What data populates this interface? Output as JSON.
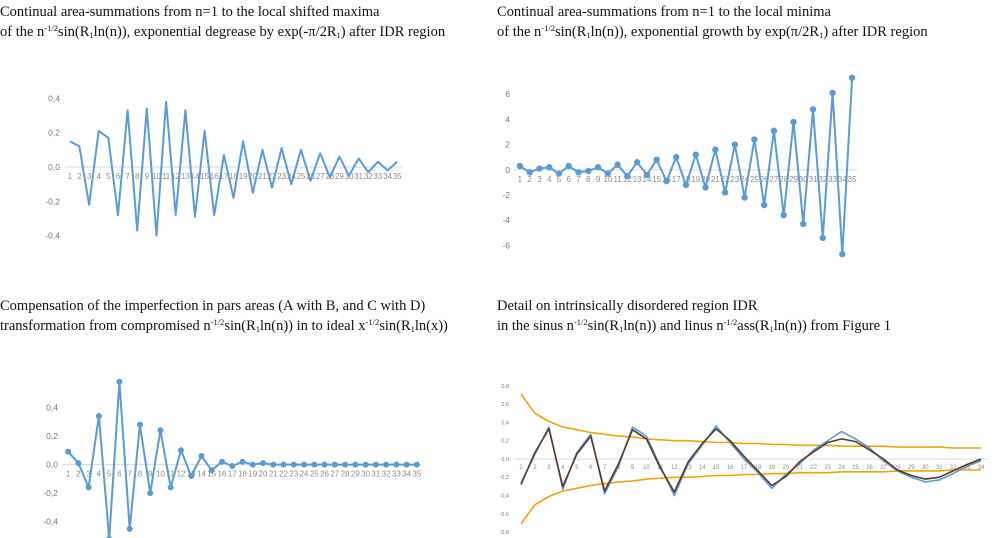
{
  "titles": {
    "maxima": {
      "line1": "Continual area-summations from n=1 to the local shifted maxima",
      "line2": [
        {
          "t": "of the n"
        },
        {
          "sup": "-1/2"
        },
        {
          "t": "sin(R"
        },
        {
          "sub": "1"
        },
        {
          "t": "ln(n)), exponential degrease by exp(-π/2R"
        },
        {
          "sub": "1"
        },
        {
          "t": ") after IDR region"
        }
      ]
    },
    "minima": {
      "line1": "Continual area-summations from n=1 to the local minima",
      "line2": [
        {
          "t": "of the n"
        },
        {
          "sup": "-1/2"
        },
        {
          "t": "sin(R"
        },
        {
          "sub": "1"
        },
        {
          "t": "ln(n)), exponential growth by exp(π/2R"
        },
        {
          "sub": "1"
        },
        {
          "t": ") after IDR region"
        }
      ]
    },
    "compensation": {
      "line1": "Compensation of the imperfection in pars areas (A with B, and C with D)",
      "line2": [
        {
          "t": "transformation from compromised n"
        },
        {
          "sup": "-1/2"
        },
        {
          "t": "sin(R"
        },
        {
          "sub": "1"
        },
        {
          "t": "ln(n)) in to ideal x"
        },
        {
          "sup": "-1/2"
        },
        {
          "t": "sin(R"
        },
        {
          "sub": "1"
        },
        {
          "t": "ln(x))"
        }
      ]
    },
    "idr": {
      "line1": "Detail on intrinsically disordered region IDR",
      "line2": [
        {
          "t": "in the sinus n"
        },
        {
          "sup": "-1/2"
        },
        {
          "t": "sin(R"
        },
        {
          "sub": "1"
        },
        {
          "t": "ln(n)) and linus n"
        },
        {
          "sup": "-1/2"
        },
        {
          "t": "ass(R"
        },
        {
          "sub": "1"
        },
        {
          "t": "ln(n)) from Figure 1"
        }
      ]
    }
  },
  "chart_data": [
    {
      "id": "maxima",
      "type": "line",
      "categories": [
        1,
        2,
        3,
        4,
        5,
        6,
        7,
        8,
        9,
        10,
        11,
        12,
        13,
        14,
        15,
        16,
        17,
        18,
        19,
        20,
        21,
        22,
        23,
        24,
        25,
        26,
        27,
        28,
        29,
        30,
        31,
        32,
        33,
        34,
        35
      ],
      "series": [
        {
          "values": [
            0.15,
            0.12,
            -0.22,
            0.21,
            0.17,
            -0.28,
            0.33,
            -0.37,
            0.34,
            -0.4,
            0.38,
            -0.28,
            0.33,
            -0.29,
            0.21,
            -0.28,
            0.07,
            -0.18,
            0.15,
            -0.15,
            0.1,
            -0.12,
            0.11,
            -0.1,
            0.1,
            -0.08,
            0.08,
            -0.06,
            0.06,
            -0.05,
            0.05,
            -0.03,
            0.03,
            -0.02,
            0.03
          ],
          "color": "#5b9bd5",
          "markers": false
        }
      ],
      "yticks": [
        "0,4",
        "0,2",
        "0,0",
        "-0,2",
        "-0,4"
      ],
      "ytick_values": [
        0.4,
        0.2,
        0,
        -0.2,
        -0.4
      ],
      "ylim": [
        -0.46,
        0.46
      ],
      "grid": false
    },
    {
      "id": "minima",
      "type": "line",
      "categories": [
        1,
        2,
        3,
        4,
        5,
        6,
        7,
        8,
        9,
        10,
        11,
        12,
        13,
        14,
        15,
        16,
        17,
        18,
        19,
        20,
        21,
        22,
        23,
        24,
        25,
        26,
        27,
        28,
        29,
        30,
        31,
        32,
        33,
        34,
        35
      ],
      "series": [
        {
          "values": [
            0.3,
            -0.2,
            0.1,
            0.2,
            -0.3,
            0.3,
            -0.2,
            -0.1,
            0.2,
            -0.3,
            0.4,
            -0.5,
            0.6,
            -0.4,
            0.8,
            -0.9,
            1.0,
            -1.2,
            1.2,
            -1.4,
            1.6,
            -1.8,
            2.0,
            -2.2,
            2.4,
            -2.8,
            3.1,
            -3.6,
            3.8,
            -4.3,
            4.8,
            -5.4,
            6.1,
            -6.7,
            7.3
          ],
          "color": "#5b9bd5",
          "markers": true
        }
      ],
      "yticks": [
        "6",
        "4",
        "2",
        "0",
        "-2",
        "-4",
        "-6"
      ],
      "ytick_values": [
        6,
        4,
        2,
        0,
        -2,
        -4,
        -6
      ],
      "ylim": [
        -7,
        7.6
      ],
      "grid": false
    },
    {
      "id": "compensation",
      "type": "line",
      "categories": [
        1,
        2,
        3,
        4,
        5,
        6,
        7,
        8,
        9,
        10,
        11,
        12,
        13,
        14,
        15,
        16,
        17,
        18,
        19,
        20,
        21,
        22,
        23,
        24,
        25,
        26,
        27,
        28,
        29,
        30,
        31,
        32,
        33,
        34,
        35
      ],
      "series": [
        {
          "values": [
            0.09,
            0.01,
            -0.16,
            0.34,
            -0.52,
            0.58,
            -0.45,
            0.28,
            -0.2,
            0.24,
            -0.16,
            0.1,
            -0.08,
            0.06,
            -0.04,
            0.02,
            -0.01,
            0.02,
            0.0,
            0.01,
            0.0,
            0.0,
            0.0,
            0.0,
            0.0,
            0.0,
            0.0,
            0.0,
            0.0,
            0.0,
            0.0,
            0.0,
            0.0,
            0.0,
            0.0
          ],
          "color": "#5b9bd5",
          "markers": true
        }
      ],
      "yticks": [
        "0,4",
        "0,2",
        "0,0",
        "-0,2",
        "-0,4"
      ],
      "ytick_values": [
        0.4,
        0.2,
        0,
        -0.2,
        -0.4
      ],
      "ylim": [
        -0.5,
        0.62
      ],
      "grid": false
    },
    {
      "id": "idr",
      "type": "line",
      "categories": [
        1,
        2,
        3,
        4,
        5,
        6,
        7,
        8,
        9,
        10,
        11,
        12,
        13,
        14,
        15,
        16,
        17,
        18,
        19,
        20,
        21,
        22,
        23,
        24,
        25,
        26,
        27,
        28,
        29,
        30,
        31,
        32,
        33,
        34
      ],
      "yticks": [
        "0,8",
        "0,6",
        "0,4",
        "0,2",
        "0,0",
        "-0,2",
        "-0,4",
        "-0,6",
        "-0,8"
      ],
      "ytick_values": [
        0.8,
        0.6,
        0.4,
        0.2,
        0,
        -0.2,
        -0.4,
        -0.6,
        -0.8
      ],
      "ylim": [
        -0.82,
        0.82
      ],
      "grid": false,
      "series": [
        {
          "color": "#f0a30a",
          "values": [
            0.71,
            0.5,
            0.41,
            0.35,
            0.32,
            0.29,
            0.27,
            0.25,
            0.24,
            0.22,
            0.21,
            0.2,
            0.2,
            0.19,
            0.18,
            0.18,
            0.17,
            0.17,
            0.16,
            0.16,
            0.15,
            0.15,
            0.15,
            0.14,
            0.14,
            0.14,
            0.14,
            0.13,
            0.13,
            0.13,
            0.13,
            0.12,
            0.12,
            0.12
          ],
          "markers": false
        },
        {
          "color": "#f0a30a",
          "values": [
            -0.71,
            -0.5,
            -0.41,
            -0.35,
            -0.32,
            -0.29,
            -0.27,
            -0.25,
            -0.24,
            -0.22,
            -0.21,
            -0.2,
            -0.2,
            -0.19,
            -0.18,
            -0.18,
            -0.17,
            -0.17,
            -0.16,
            -0.16,
            -0.15,
            -0.15,
            -0.15,
            -0.14,
            -0.14,
            -0.14,
            -0.14,
            -0.13,
            -0.13,
            -0.13,
            -0.13,
            -0.12,
            -0.12,
            -0.12
          ],
          "markers": false
        },
        {
          "color": "#5b9bd5",
          "values": [
            -0.26,
            0.05,
            0.35,
            -0.33,
            0.07,
            0.27,
            -0.38,
            -0.08,
            0.35,
            0.25,
            -0.08,
            -0.4,
            -0.05,
            0.15,
            0.36,
            0.18,
            0.0,
            -0.15,
            -0.32,
            -0.17,
            -0.05,
            0.1,
            0.2,
            0.3,
            0.22,
            0.12,
            -0.02,
            -0.13,
            -0.2,
            -0.25,
            -0.23,
            -0.16,
            -0.08,
            -0.02
          ],
          "markers": false
        },
        {
          "color": "#5a3a22",
          "values": [
            -0.28,
            0.07,
            0.33,
            -0.3,
            0.05,
            0.25,
            -0.35,
            -0.05,
            0.32,
            0.22,
            -0.1,
            -0.36,
            -0.03,
            0.17,
            0.33,
            0.2,
            0.03,
            -0.13,
            -0.29,
            -0.19,
            -0.03,
            0.08,
            0.18,
            0.22,
            0.19,
            0.1,
            0.0,
            -0.12,
            -0.18,
            -0.22,
            -0.2,
            -0.13,
            -0.06,
            0.0
          ],
          "markers": false
        }
      ]
    }
  ]
}
